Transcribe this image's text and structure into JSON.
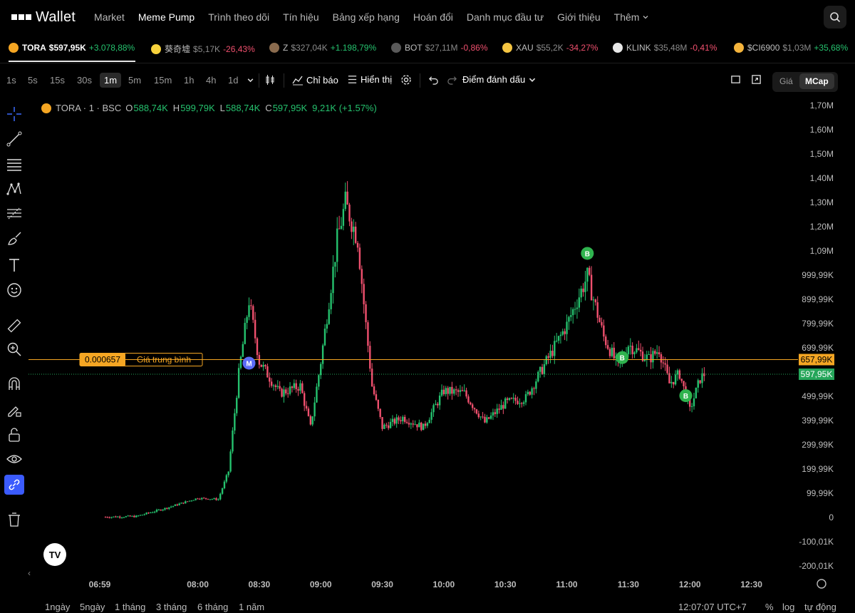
{
  "brand": {
    "logo_text": "Wallet"
  },
  "nav": {
    "items": [
      "Market",
      "Meme Pump",
      "Trình theo dõi",
      "Tín hiệu",
      "Bảng xếp hạng",
      "Hoán đổi",
      "Danh mục đầu tư",
      "Giới thiệu"
    ],
    "active": "Meme Pump",
    "more_label": "Thêm"
  },
  "ticker": [
    {
      "symbol": "TORA",
      "price": "$597,95K",
      "change": "+3.078,88%",
      "dir": "up",
      "color": "#f5a623"
    },
    {
      "symbol": "葵奇墟",
      "price": "$5,17K",
      "change": "-26,43%",
      "dir": "dn",
      "color": "#f7d23c"
    },
    {
      "symbol": "Z",
      "price": "$327,04K",
      "change": "+1.198,79%",
      "dir": "up",
      "color": "#8a6b4e"
    },
    {
      "symbol": "BOT",
      "price": "$27,11M",
      "change": "-0,86%",
      "dir": "dn",
      "color": "#8a8a8a"
    },
    {
      "symbol": "XAU",
      "price": "$55,2K",
      "change": "-34,27%",
      "dir": "dn",
      "color": "#f5c542"
    },
    {
      "symbol": "KLINK",
      "price": "$35,48M",
      "change": "-0,41%",
      "dir": "dn",
      "color": "#e8e8e8"
    },
    {
      "symbol": "$CI6900",
      "price": "$1,03M",
      "change": "+35,68%",
      "dir": "up",
      "color": "#f5b43c"
    }
  ],
  "toolbar": {
    "timeframes": [
      "1s",
      "5s",
      "15s",
      "30s",
      "1m",
      "5m",
      "15m",
      "1h",
      "4h",
      "1d"
    ],
    "active_tf": "1m",
    "indicators_label": "Chỉ báo",
    "display_label": "Hiển thị",
    "bookmark_label": "Điểm đánh dấu",
    "price_label": "Giá",
    "mcap_label": "MCap",
    "active_mode": "MCap"
  },
  "legend": {
    "name": "TORA · 1 · BSC",
    "open_label": "O",
    "open": "588,74K",
    "high_label": "H",
    "high": "599,79K",
    "low_label": "L",
    "low": "588,74K",
    "close_label": "C",
    "close": "597,95K",
    "change": "9,21K (+1.57%)"
  },
  "price_axis": [
    "1,70M",
    "1,60M",
    "1,50M",
    "1,40M",
    "1,30M",
    "1,20M",
    "1,09M",
    "999,99K",
    "899,99K",
    "799,99K",
    "699,99K",
    "599,99K",
    "499,99K",
    "399,99K",
    "299,99K",
    "199,99K",
    "99,99K",
    "0",
    "-100,01K",
    "-200,01K"
  ],
  "time_axis": [
    "06:59",
    "08:00",
    "08:30",
    "09:00",
    "09:30",
    "10:00",
    "10:30",
    "11:00",
    "11:30",
    "12:00",
    "12:30"
  ],
  "avg_line": {
    "value_label": "0.000657",
    "text": "Giá trung bình",
    "axis_label": "657,99K",
    "mcap": 657990,
    "color": "#f5a623"
  },
  "last_price": {
    "axis_label": "597,95K",
    "mcap": 597950,
    "color": "#25a65a"
  },
  "colors": {
    "up": "#25c26e",
    "down": "#f0506e",
    "bg": "#000000",
    "grid_text": "#bdbdbd"
  },
  "chart_data": {
    "type": "candlestick",
    "y_unit": "market cap (USD)",
    "ylim": [
      -200010,
      1700000
    ],
    "x_range": [
      "06:59",
      "12:07"
    ],
    "path_points": [
      {
        "t": "06:59",
        "v": 10000
      },
      {
        "t": "07:30",
        "v": 15000
      },
      {
        "t": "07:45",
        "v": 50000
      },
      {
        "t": "08:00",
        "v": 90000
      },
      {
        "t": "08:10",
        "v": 85000
      },
      {
        "t": "08:15",
        "v": 200000
      },
      {
        "t": "08:20",
        "v": 600000
      },
      {
        "t": "08:25",
        "v": 900000
      },
      {
        "t": "08:30",
        "v": 650000
      },
      {
        "t": "08:40",
        "v": 520000
      },
      {
        "t": "08:50",
        "v": 550000
      },
      {
        "t": "08:55",
        "v": 380000
      },
      {
        "t": "09:00",
        "v": 650000
      },
      {
        "t": "09:08",
        "v": 1150000
      },
      {
        "t": "09:12",
        "v": 1300000
      },
      {
        "t": "09:18",
        "v": 1150000
      },
      {
        "t": "09:22",
        "v": 800000
      },
      {
        "t": "09:25",
        "v": 550000
      },
      {
        "t": "09:30",
        "v": 380000
      },
      {
        "t": "09:40",
        "v": 420000
      },
      {
        "t": "09:50",
        "v": 380000
      },
      {
        "t": "10:00",
        "v": 530000
      },
      {
        "t": "10:10",
        "v": 520000
      },
      {
        "t": "10:20",
        "v": 400000
      },
      {
        "t": "10:30",
        "v": 480000
      },
      {
        "t": "10:40",
        "v": 500000
      },
      {
        "t": "10:50",
        "v": 650000
      },
      {
        "t": "11:00",
        "v": 800000
      },
      {
        "t": "11:10",
        "v": 1000000
      },
      {
        "t": "11:18",
        "v": 750000
      },
      {
        "t": "11:25",
        "v": 630000
      },
      {
        "t": "11:30",
        "v": 720000
      },
      {
        "t": "11:40",
        "v": 660000
      },
      {
        "t": "11:45",
        "v": 700000
      },
      {
        "t": "11:50",
        "v": 560000
      },
      {
        "t": "11:55",
        "v": 600000
      },
      {
        "t": "12:00",
        "v": 450000
      },
      {
        "t": "12:05",
        "v": 580000
      },
      {
        "t": "12:07",
        "v": 597950
      }
    ],
    "markers": [
      {
        "t": "08:25",
        "label": "M",
        "color": "#5b6cf6"
      },
      {
        "t": "11:10",
        "label": "B",
        "color": "#2fb34e"
      },
      {
        "t": "11:27",
        "label": "B",
        "color": "#2fb34e"
      },
      {
        "t": "11:58",
        "label": "B",
        "color": "#2fb34e"
      }
    ]
  },
  "bottom": {
    "ranges": [
      "1ngày",
      "5ngày",
      "1 tháng",
      "3 tháng",
      "6 tháng",
      "1 năm"
    ],
    "clock": "12:07:07 UTC+7",
    "percent": "%",
    "log": "log",
    "auto": "tự động"
  }
}
